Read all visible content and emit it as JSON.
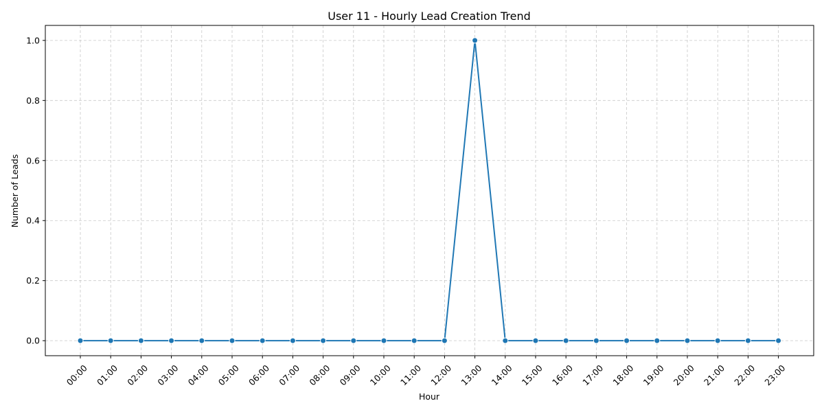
{
  "chart_data": {
    "type": "line",
    "title": "User 11 - Hourly Lead Creation Trend",
    "xlabel": "Hour",
    "ylabel": "Number of Leads",
    "categories": [
      "00:00",
      "01:00",
      "02:00",
      "03:00",
      "04:00",
      "05:00",
      "06:00",
      "07:00",
      "08:00",
      "09:00",
      "10:00",
      "11:00",
      "12:00",
      "13:00",
      "14:00",
      "15:00",
      "16:00",
      "17:00",
      "18:00",
      "19:00",
      "20:00",
      "21:00",
      "22:00",
      "23:00"
    ],
    "series": [
      {
        "values": [
          0,
          0,
          0,
          0,
          0,
          0,
          0,
          0,
          0,
          0,
          0,
          0,
          0,
          1,
          0,
          0,
          0,
          0,
          0,
          0,
          0,
          0,
          0,
          0
        ]
      }
    ],
    "ylim": [
      -0.05,
      1.05
    ],
    "yticks": [
      0.0,
      0.2,
      0.4,
      0.6,
      0.8,
      1.0
    ],
    "ytick_labels": [
      "0.0",
      "0.2",
      "0.4",
      "0.6",
      "0.8",
      "1.0"
    ],
    "grid": true,
    "grid_style": "dashed",
    "line_color": "#1f77b4",
    "marker": "circle",
    "x_tick_rotation_deg": 45
  }
}
